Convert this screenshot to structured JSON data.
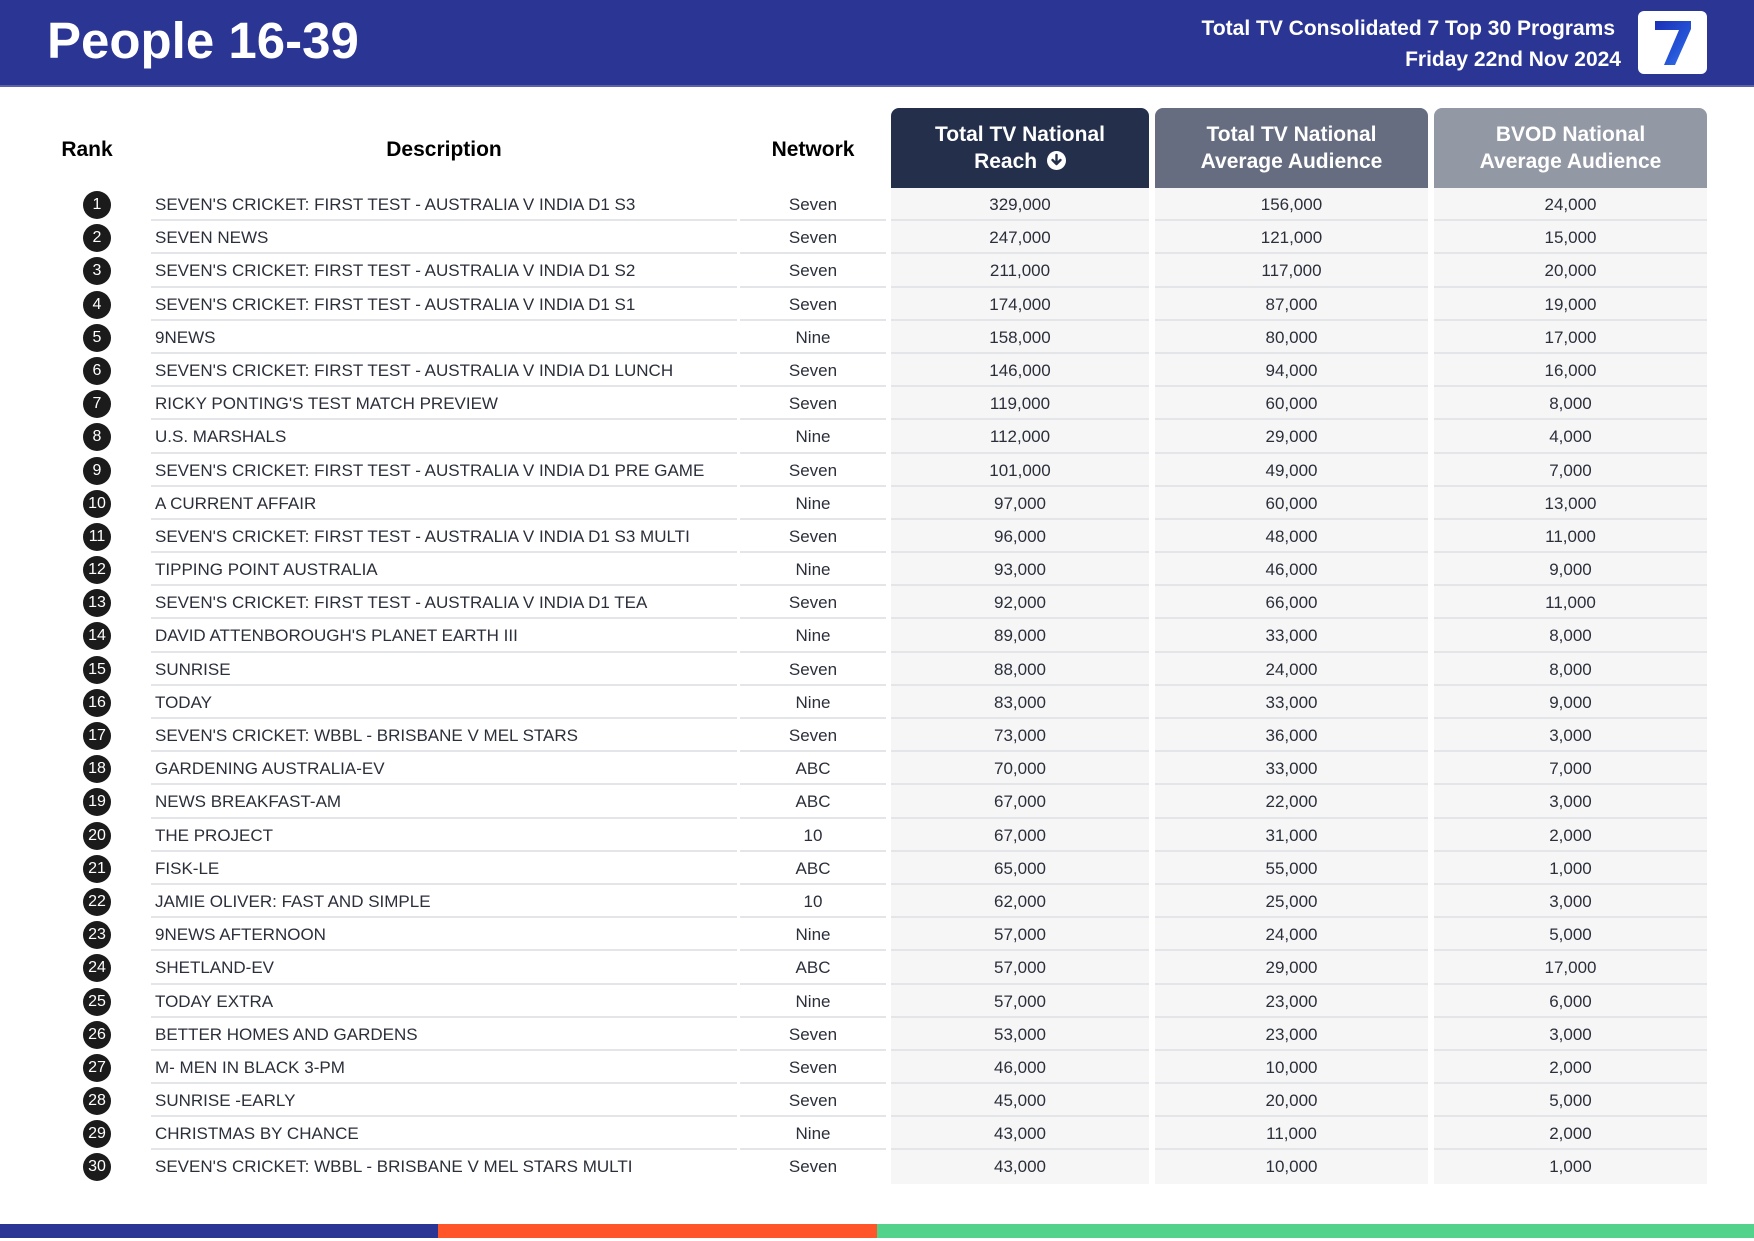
{
  "header": {
    "title": "People 16-39",
    "subtitle_line1": "Total TV Consolidated 7 Top 30 Programs",
    "subtitle_line2": "Friday 22nd Nov 2024",
    "logo_glyph": "7",
    "logo_icon": "seven-network-logo-icon"
  },
  "colors": {
    "header_bg": "#2b3593",
    "reach_header": "#232f4b",
    "avg_header": "#666d80",
    "bvod_header": "#9398a5",
    "rank_badge": "#1b1b1b",
    "logo_blue": "#1d3fc4",
    "footer_stripes": [
      "#2b3593",
      "#ff5528",
      "#52d28a"
    ]
  },
  "table": {
    "columns": {
      "rank": "Rank",
      "description": "Description",
      "network": "Network",
      "reach_line1": "Total TV National",
      "reach_line2": "Reach",
      "reach_sort_icon": "sort-descending-icon",
      "avg_line1": "Total TV National",
      "avg_line2": "Average Audience",
      "bvod_line1": "BVOD National",
      "bvod_line2": "Average Audience"
    },
    "rows": [
      {
        "rank": "1",
        "description": "SEVEN'S CRICKET: FIRST TEST - AUSTRALIA V INDIA D1 S3",
        "network": "Seven",
        "reach": "329,000",
        "avg": "156,000",
        "bvod": "24,000"
      },
      {
        "rank": "2",
        "description": "SEVEN NEWS",
        "network": "Seven",
        "reach": "247,000",
        "avg": "121,000",
        "bvod": "15,000"
      },
      {
        "rank": "3",
        "description": "SEVEN'S CRICKET: FIRST TEST - AUSTRALIA V INDIA D1 S2",
        "network": "Seven",
        "reach": "211,000",
        "avg": "117,000",
        "bvod": "20,000"
      },
      {
        "rank": "4",
        "description": "SEVEN'S CRICKET: FIRST TEST - AUSTRALIA V INDIA D1 S1",
        "network": "Seven",
        "reach": "174,000",
        "avg": "87,000",
        "bvod": "19,000"
      },
      {
        "rank": "5",
        "description": "9NEWS",
        "network": "Nine",
        "reach": "158,000",
        "avg": "80,000",
        "bvod": "17,000"
      },
      {
        "rank": "6",
        "description": "SEVEN'S CRICKET: FIRST TEST - AUSTRALIA V INDIA D1 LUNCH",
        "network": "Seven",
        "reach": "146,000",
        "avg": "94,000",
        "bvod": "16,000"
      },
      {
        "rank": "7",
        "description": "RICKY PONTING'S TEST MATCH PREVIEW",
        "network": "Seven",
        "reach": "119,000",
        "avg": "60,000",
        "bvod": "8,000"
      },
      {
        "rank": "8",
        "description": "U.S. MARSHALS",
        "network": "Nine",
        "reach": "112,000",
        "avg": "29,000",
        "bvod": "4,000"
      },
      {
        "rank": "9",
        "description": "SEVEN'S CRICKET: FIRST TEST - AUSTRALIA V INDIA D1 PRE GAME",
        "network": "Seven",
        "reach": "101,000",
        "avg": "49,000",
        "bvod": "7,000"
      },
      {
        "rank": "10",
        "description": "A CURRENT AFFAIR",
        "network": "Nine",
        "reach": "97,000",
        "avg": "60,000",
        "bvod": "13,000"
      },
      {
        "rank": "11",
        "description": "SEVEN'S CRICKET: FIRST TEST - AUSTRALIA V INDIA D1 S3 MULTI",
        "network": "Seven",
        "reach": "96,000",
        "avg": "48,000",
        "bvod": "11,000"
      },
      {
        "rank": "12",
        "description": "TIPPING POINT AUSTRALIA",
        "network": "Nine",
        "reach": "93,000",
        "avg": "46,000",
        "bvod": "9,000"
      },
      {
        "rank": "13",
        "description": "SEVEN'S CRICKET: FIRST TEST - AUSTRALIA V INDIA D1 TEA",
        "network": "Seven",
        "reach": "92,000",
        "avg": "66,000",
        "bvod": "11,000"
      },
      {
        "rank": "14",
        "description": "DAVID ATTENBOROUGH'S PLANET EARTH III",
        "network": "Nine",
        "reach": "89,000",
        "avg": "33,000",
        "bvod": "8,000"
      },
      {
        "rank": "15",
        "description": "SUNRISE",
        "network": "Seven",
        "reach": "88,000",
        "avg": "24,000",
        "bvod": "8,000"
      },
      {
        "rank": "16",
        "description": "TODAY",
        "network": "Nine",
        "reach": "83,000",
        "avg": "33,000",
        "bvod": "9,000"
      },
      {
        "rank": "17",
        "description": "SEVEN'S CRICKET: WBBL - BRISBANE V MEL STARS",
        "network": "Seven",
        "reach": "73,000",
        "avg": "36,000",
        "bvod": "3,000"
      },
      {
        "rank": "18",
        "description": "GARDENING AUSTRALIA-EV",
        "network": "ABC",
        "reach": "70,000",
        "avg": "33,000",
        "bvod": "7,000"
      },
      {
        "rank": "19",
        "description": "NEWS BREAKFAST-AM",
        "network": "ABC",
        "reach": "67,000",
        "avg": "22,000",
        "bvod": "3,000"
      },
      {
        "rank": "20",
        "description": "THE PROJECT",
        "network": "10",
        "reach": "67,000",
        "avg": "31,000",
        "bvod": "2,000"
      },
      {
        "rank": "21",
        "description": "FISK-LE",
        "network": "ABC",
        "reach": "65,000",
        "avg": "55,000",
        "bvod": "1,000"
      },
      {
        "rank": "22",
        "description": "JAMIE OLIVER: FAST AND SIMPLE",
        "network": "10",
        "reach": "62,000",
        "avg": "25,000",
        "bvod": "3,000"
      },
      {
        "rank": "23",
        "description": "9NEWS AFTERNOON",
        "network": "Nine",
        "reach": "57,000",
        "avg": "24,000",
        "bvod": "5,000"
      },
      {
        "rank": "24",
        "description": "SHETLAND-EV",
        "network": "ABC",
        "reach": "57,000",
        "avg": "29,000",
        "bvod": "17,000"
      },
      {
        "rank": "25",
        "description": "TODAY EXTRA",
        "network": "Nine",
        "reach": "57,000",
        "avg": "23,000",
        "bvod": "6,000"
      },
      {
        "rank": "26",
        "description": "BETTER HOMES AND GARDENS",
        "network": "Seven",
        "reach": "53,000",
        "avg": "23,000",
        "bvod": "3,000"
      },
      {
        "rank": "27",
        "description": "M- MEN IN BLACK 3-PM",
        "network": "Seven",
        "reach": "46,000",
        "avg": "10,000",
        "bvod": "2,000"
      },
      {
        "rank": "28",
        "description": "SUNRISE -EARLY",
        "network": "Seven",
        "reach": "45,000",
        "avg": "20,000",
        "bvod": "5,000"
      },
      {
        "rank": "29",
        "description": "CHRISTMAS BY CHANCE",
        "network": "Nine",
        "reach": "43,000",
        "avg": "11,000",
        "bvod": "2,000"
      },
      {
        "rank": "30",
        "description": "SEVEN'S CRICKET: WBBL - BRISBANE V MEL STARS MULTI",
        "network": "Seven",
        "reach": "43,000",
        "avg": "10,000",
        "bvod": "1,000"
      }
    ]
  }
}
